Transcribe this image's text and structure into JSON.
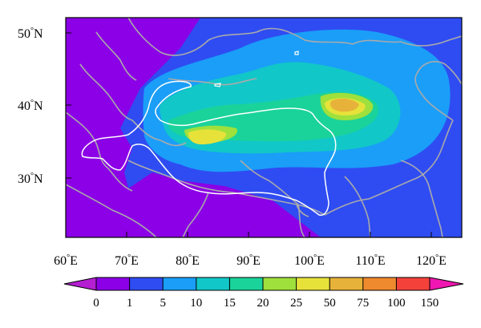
{
  "map": {
    "lat_ticks": [
      {
        "deg": "50",
        "hemi": "N"
      },
      {
        "deg": "40",
        "hemi": "N"
      },
      {
        "deg": "30",
        "hemi": "N"
      }
    ],
    "lon_ticks": [
      {
        "deg": "60",
        "hemi": "E"
      },
      {
        "deg": "70",
        "hemi": "E"
      },
      {
        "deg": "80",
        "hemi": "E"
      },
      {
        "deg": "90",
        "hemi": "E"
      },
      {
        "deg": "100",
        "hemi": "E"
      },
      {
        "deg": "110",
        "hemi": "E"
      },
      {
        "deg": "120",
        "hemi": "E"
      }
    ],
    "extent": {
      "lon": [
        60,
        124
      ],
      "lat": [
        22,
        52
      ]
    },
    "boundary_colors": {
      "coast_border": "#aaaaaa",
      "plateau_outline": "#ffffff"
    }
  },
  "colorbar": {
    "labels": [
      "0",
      "1",
      "5",
      "10",
      "15",
      "20",
      "25",
      "50",
      "75",
      "100",
      "150"
    ],
    "colors": [
      "#b41fd1",
      "#8b00e6",
      "#2f4cf2",
      "#1a9ef8",
      "#12c7c7",
      "#1ad39a",
      "#9fe03c",
      "#e7e23a",
      "#e7b23a",
      "#f08a2e",
      "#f4423b",
      "#f016b0"
    ]
  }
}
